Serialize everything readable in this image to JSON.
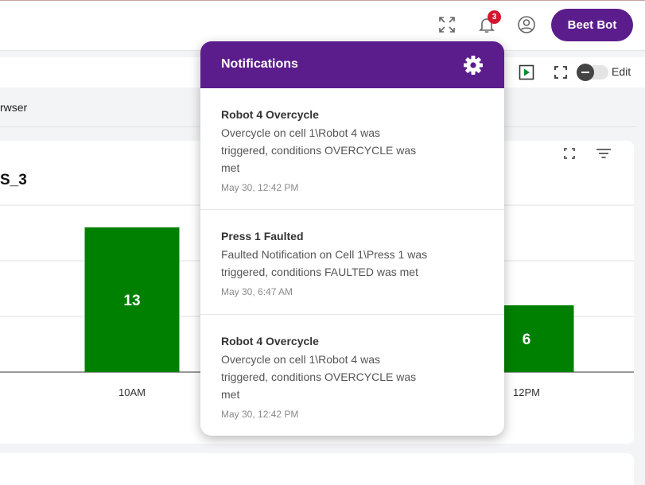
{
  "header": {
    "notification_count": "3",
    "user_button_label": "Beet Bot",
    "icons": [
      "fullscreen-icon",
      "bell-icon",
      "user-circle-icon"
    ]
  },
  "toolbar": {
    "edit_label": "Edit",
    "icons": [
      "play-icon",
      "expand-icon",
      "toggle-switch"
    ]
  },
  "browser_row": {
    "label": "rwser"
  },
  "chart_card": {
    "title": "S_3",
    "icons": [
      "expand-icon",
      "filter-icon"
    ]
  },
  "chart_data": {
    "type": "bar",
    "categories": [
      "10AM",
      "12PM"
    ],
    "values": [
      13,
      6
    ],
    "bar_color": "#008000",
    "gridlines": true
  },
  "notifications": {
    "title": "Notifications",
    "header_color": "#5b1d8c",
    "items": [
      {
        "title": "Robot 4 Overcycle",
        "body_lines": [
          "Overcycle on cell 1\\Robot 4 was",
          "triggered, conditions OVERCYCLE was",
          "met"
        ],
        "time": "May 30, 12:42 PM"
      },
      {
        "title": "Press 1 Faulted",
        "body_lines": [
          "Faulted Notification on Cell 1\\Press 1 was",
          "triggered, conditions FAULTED was met"
        ],
        "time": "May 30, 6:47 AM"
      },
      {
        "title": "Robot 4 Overcycle",
        "body_lines": [
          "Overcycle on cell 1\\Robot 4 was",
          "triggered, conditions OVERCYCLE was",
          "met"
        ],
        "time": "May 30, 12:42 PM"
      }
    ]
  }
}
